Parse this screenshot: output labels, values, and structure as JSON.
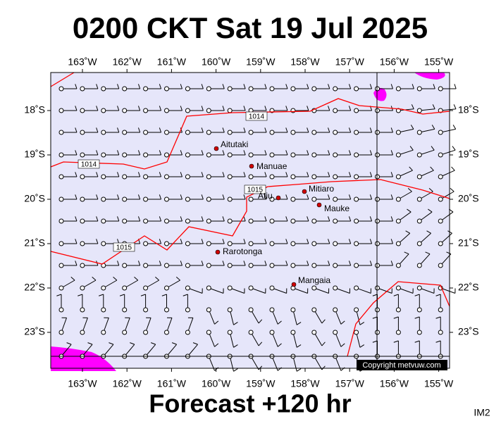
{
  "header": {
    "title": "0200 CKT Sat 19 Jul 2025"
  },
  "axes": {
    "lon_labels": [
      "163˚W",
      "162˚W",
      "161˚W",
      "160˚W",
      "159˚W",
      "158˚W",
      "157˚W",
      "156˚W",
      "155˚W"
    ],
    "lat_labels": [
      "18˚S",
      "19˚S",
      "20˚S",
      "21˚S",
      "22˚S",
      "23˚S"
    ]
  },
  "places": [
    "Aitutaki",
    "Manuae",
    "Atiu",
    "Mitiaro",
    "Mauke",
    "Rarotonga",
    "Mangaia"
  ],
  "isobar_labels": [
    "1014",
    "1014",
    "1015",
    "1015"
  ],
  "copyright": "Copyright metvuw.com",
  "footer": {
    "forecast": "Forecast +120 hr",
    "code": "IM2"
  }
}
